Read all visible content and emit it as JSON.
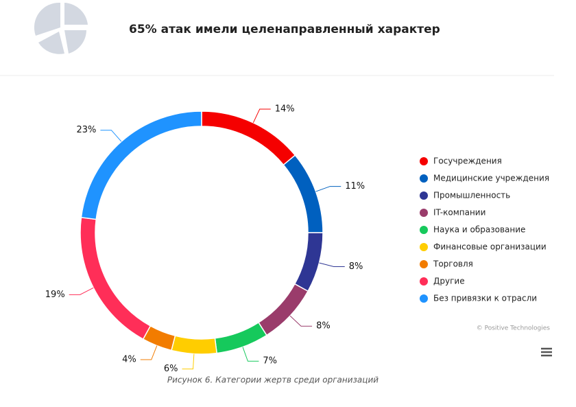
{
  "chart_data": {
    "type": "donut",
    "title": "65% атак имели целенаправленный характер",
    "categories": [
      "Госучреждения",
      "Медицинские учреждения",
      "Промышленность",
      "IT-компании",
      "Наука и образование",
      "Финансовые организации",
      "Торговля",
      "Другие",
      "Без привязки к отрасли"
    ],
    "values": [
      14,
      11,
      8,
      8,
      7,
      6,
      4,
      19,
      23
    ],
    "value_labels": [
      "14%",
      "11%",
      "8%",
      "8%",
      "7%",
      "6%",
      "4%",
      "19%",
      "23%"
    ],
    "colors": [
      "#f50000",
      "#0060bf",
      "#2e3694",
      "#9a3c6b",
      "#16c95c",
      "#ffcd00",
      "#f27c00",
      "#ff2e58",
      "#1f93ff"
    ],
    "legend": "right",
    "caption": "Рисунок 6. Категории жертв среди организаций",
    "source": "© Positive Technologies"
  }
}
